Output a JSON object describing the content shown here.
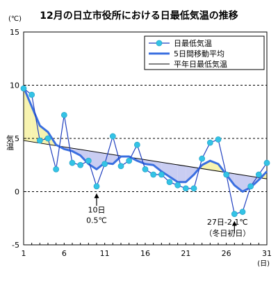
{
  "chart_data": {
    "type": "line",
    "title": "12月の日立市役所における日最低気温の推移",
    "yunit": "(℃)",
    "ylabel": "気温",
    "xunit": "(日)",
    "ylim": [
      -5,
      15
    ],
    "yticks": [
      -5,
      0,
      5,
      10,
      15
    ],
    "xlim": [
      1,
      31
    ],
    "xticks": [
      1,
      6,
      11,
      16,
      21,
      26,
      31
    ],
    "grid": "horizontal-dashed",
    "legend_position": "top-right",
    "colors": {
      "daily": "#1f3fbf",
      "marker": "#33c3e6",
      "moving_avg": "#3a6fe0",
      "normal": "#000000",
      "fill_above": "#f7f3b0",
      "fill_below": "#c9cdf2"
    },
    "series": [
      {
        "name": "日最低気温",
        "x": [
          1,
          2,
          3,
          4,
          5,
          6,
          7,
          8,
          9,
          10,
          11,
          12,
          13,
          14,
          15,
          16,
          17,
          18,
          19,
          20,
          21,
          22,
          23,
          24,
          25,
          26,
          27,
          28,
          29,
          30,
          31
        ],
        "values": [
          9.7,
          9.1,
          4.8,
          5.0,
          2.1,
          7.2,
          2.7,
          2.5,
          2.9,
          0.5,
          2.6,
          5.2,
          2.4,
          2.9,
          4.4,
          2.1,
          1.6,
          1.6,
          0.9,
          0.6,
          0.3,
          0.3,
          3.1,
          4.6,
          4.9,
          1.6,
          -2.1,
          -1.9,
          0.5,
          1.6,
          2.7
        ]
      },
      {
        "name": "5日間移動平均",
        "x": [
          1,
          2,
          3,
          4,
          5,
          6,
          7,
          8,
          9,
          10,
          11,
          12,
          13,
          14,
          15,
          16,
          17,
          18,
          19,
          20,
          21,
          22,
          23,
          24,
          25,
          26,
          27,
          28,
          29,
          30,
          31
        ],
        "values": [
          9.8,
          8.0,
          6.2,
          5.6,
          4.4,
          4.0,
          3.8,
          3.4,
          2.6,
          2.1,
          2.7,
          2.6,
          3.3,
          3.3,
          2.9,
          2.6,
          2.5,
          1.9,
          1.4,
          0.9,
          0.9,
          1.6,
          2.5,
          2.9,
          2.6,
          1.6,
          0.6,
          0.0,
          0.4,
          1.1,
          1.9
        ]
      },
      {
        "name": "平年日最低気温",
        "x": [
          1,
          31
        ],
        "values": [
          4.8,
          1.2
        ]
      }
    ],
    "annotations": [
      {
        "lines": [
          "10日",
          "0.5℃"
        ],
        "x": 10,
        "y": 0.5
      },
      {
        "lines": [
          "27日-2.1℃",
          "（冬日初日）"
        ],
        "x": 27,
        "y": -2.1
      }
    ]
  }
}
